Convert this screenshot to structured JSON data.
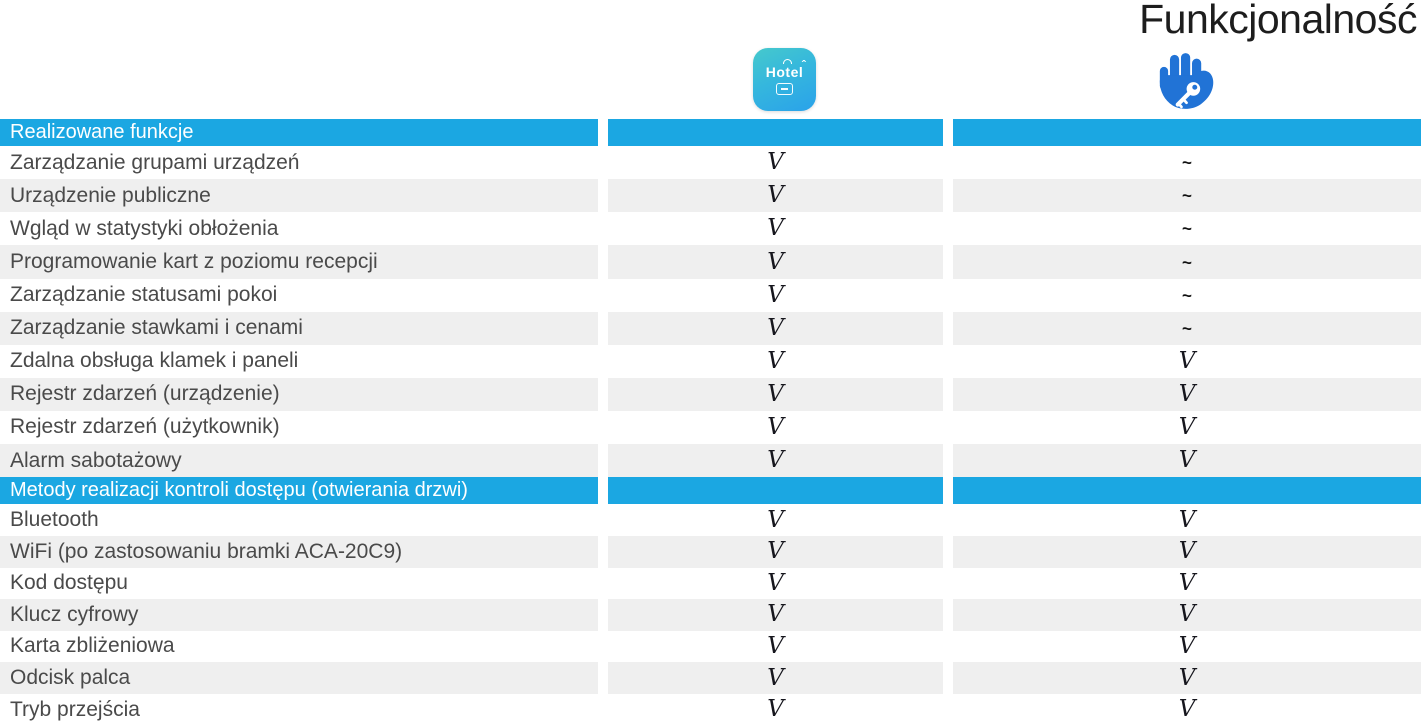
{
  "title": "Funkcjonalność",
  "symbols": {
    "check": "V",
    "dash": "~"
  },
  "colors": {
    "header_bg": "#1ba7e2",
    "row_bg": "#ffffff",
    "row_alt_bg": "#efefef",
    "header_text": "#ffffff",
    "label_text": "#4a4a4a",
    "check_text": "#16161d",
    "title_text": "#1d1d1d",
    "hotel_icon_gradient_start": "#46c9cc",
    "hotel_icon_gradient_end": "#2aa2ea",
    "hand_icon_blue": "#2173d6"
  },
  "product_columns": [
    {
      "name": "hotel-app",
      "icon": "hotel-app-icon",
      "icon_label": "Hotel"
    },
    {
      "name": "hand-key",
      "icon": "hand-key-icon",
      "icon_label": ""
    }
  ],
  "sections": [
    {
      "header": "Realizowane funkcje",
      "rows": [
        {
          "label": "Zarządzanie grupami urządzeń",
          "hotel_app": "check",
          "hand_key": "dash"
        },
        {
          "label": "Urządzenie publiczne",
          "hotel_app": "check",
          "hand_key": "dash"
        },
        {
          "label": "Wgląd w statystyki obłożenia",
          "hotel_app": "check",
          "hand_key": "dash"
        },
        {
          "label": "Programowanie kart z poziomu recepcji",
          "hotel_app": "check",
          "hand_key": "dash"
        },
        {
          "label": "Zarządzanie statusami pokoi",
          "hotel_app": "check",
          "hand_key": "dash"
        },
        {
          "label": "Zarządzanie stawkami i cenami",
          "hotel_app": "check",
          "hand_key": "dash"
        },
        {
          "label": "Zdalna obsługa klamek i paneli",
          "hotel_app": "check",
          "hand_key": "check"
        },
        {
          "label": "Rejestr zdarzeń (urządzenie)",
          "hotel_app": "check",
          "hand_key": "check"
        },
        {
          "label": "Rejestr zdarzeń (użytkownik)",
          "hotel_app": "check",
          "hand_key": "check"
        },
        {
          "label": "Alarm sabotażowy",
          "hotel_app": "check",
          "hand_key": "check"
        }
      ]
    },
    {
      "header": "Metody realizacji kontroli dostępu (otwierania drzwi)",
      "rows": [
        {
          "label": "Bluetooth",
          "hotel_app": "check",
          "hand_key": "check"
        },
        {
          "label": "WiFi (po zastosowaniu bramki ACA-20C9)",
          "hotel_app": "check",
          "hand_key": "check"
        },
        {
          "label": "Kod dostępu",
          "hotel_app": "check",
          "hand_key": "check"
        },
        {
          "label": "Klucz cyfrowy",
          "hotel_app": "check",
          "hand_key": "check"
        },
        {
          "label": "Karta zbliżeniowa",
          "hotel_app": "check",
          "hand_key": "check"
        },
        {
          "label": "Odcisk palca",
          "hotel_app": "check",
          "hand_key": "check"
        },
        {
          "label": "Tryb przejścia",
          "hotel_app": "check",
          "hand_key": "check"
        }
      ]
    }
  ]
}
